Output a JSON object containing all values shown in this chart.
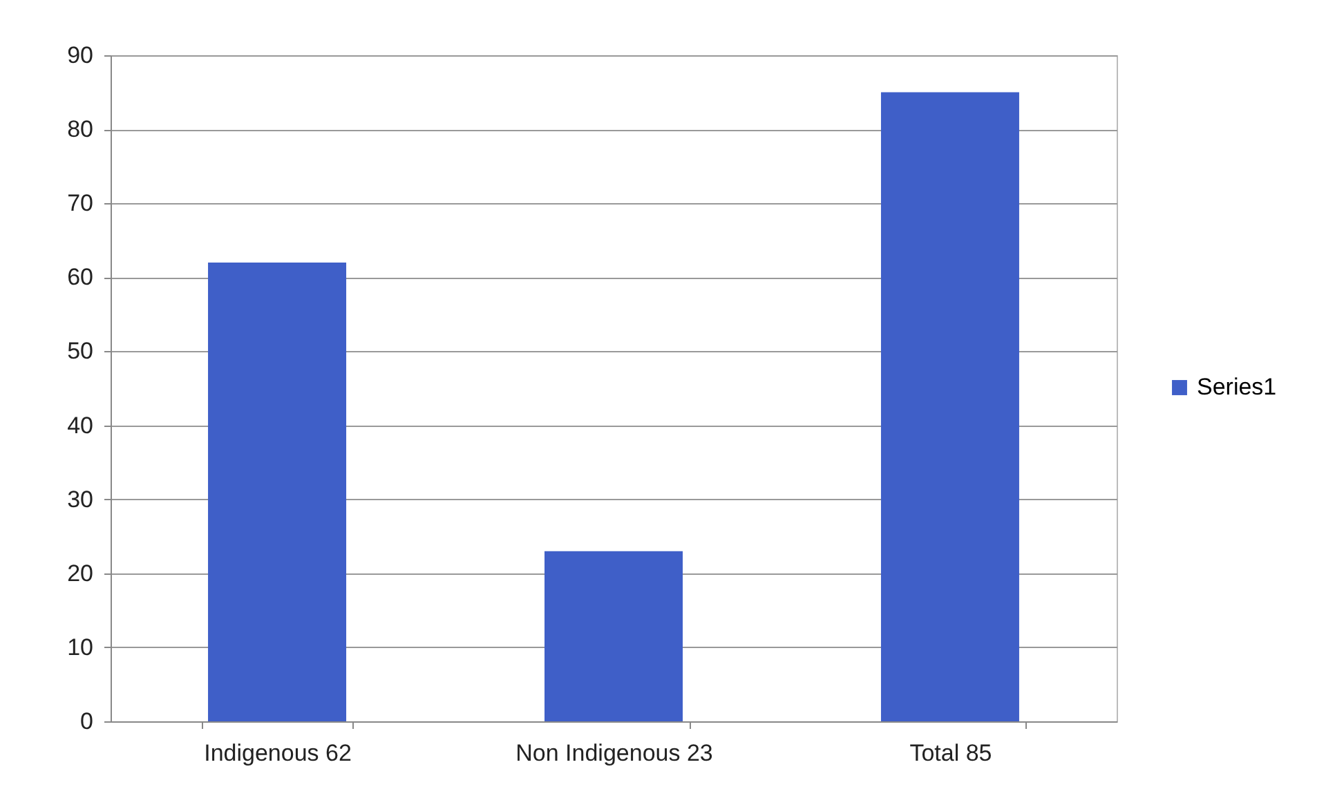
{
  "chart_data": {
    "type": "bar",
    "categories": [
      "Indigenous 62",
      "Non Indigenous 23",
      "Total 85"
    ],
    "series": [
      {
        "name": "Series1",
        "color": "#3f5fc8",
        "values": [
          62,
          23,
          85
        ]
      }
    ],
    "ylim": [
      0,
      90
    ],
    "yticks": [
      0,
      10,
      20,
      30,
      40,
      50,
      60,
      70,
      80,
      90
    ],
    "grid": "y",
    "legend": "right"
  }
}
